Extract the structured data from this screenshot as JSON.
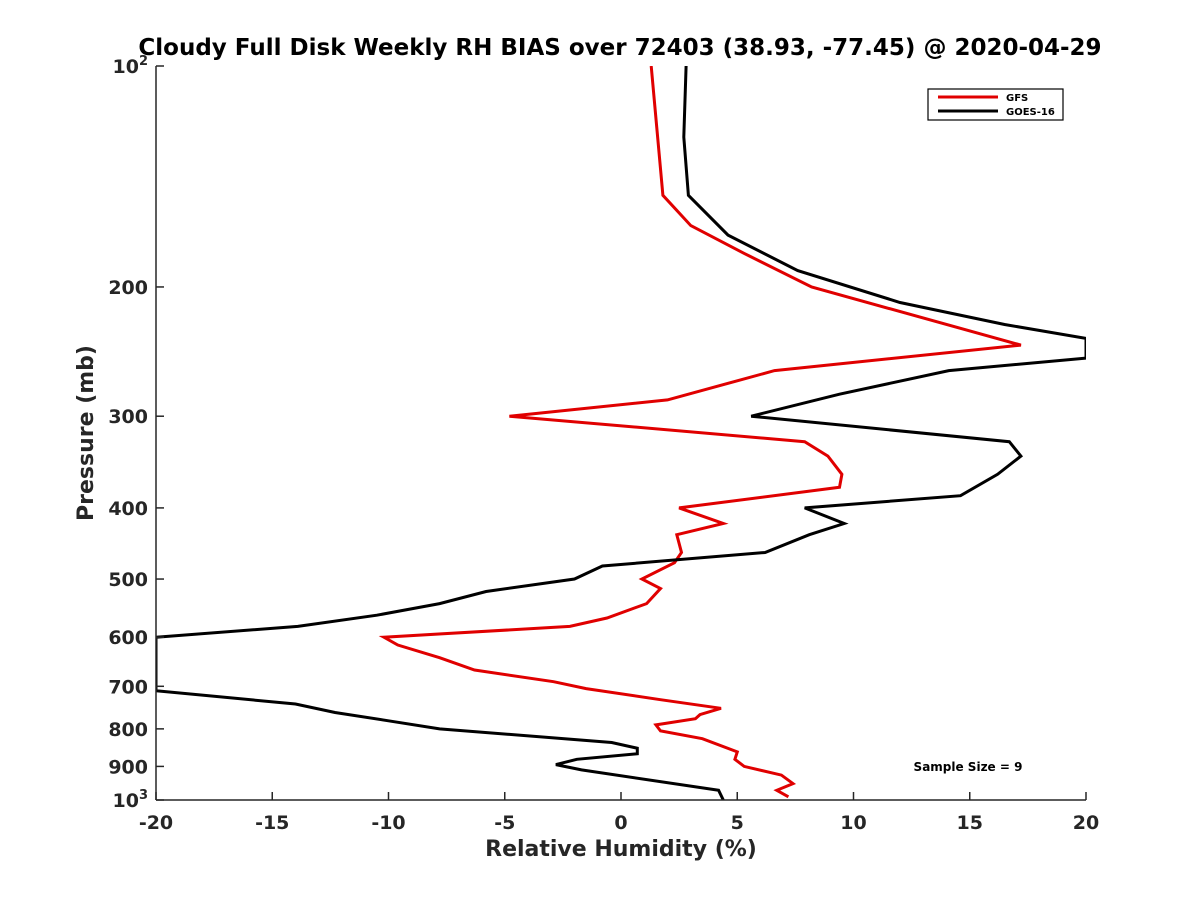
{
  "chart_data": {
    "type": "line",
    "title": "Cloudy Full Disk Weekly RH BIAS over 72403 (38.93, -77.45) @ 2020-04-29",
    "xlabel": "Relative Humidity (%)",
    "ylabel": "Pressure (mb)",
    "xlim": [
      -20,
      20
    ],
    "ylim": [
      100,
      1000
    ],
    "y_scale": "log",
    "y_reversed": true,
    "grid": false,
    "legend_position": "top-right",
    "x_tick_labels": [
      "-20",
      "-15",
      "-10",
      "-5",
      "0",
      "5",
      "10",
      "15",
      "20"
    ],
    "y_ticks": [
      {
        "value": 100,
        "base": "10",
        "exp": "2"
      },
      {
        "value": 200,
        "label": "200"
      },
      {
        "value": 300,
        "label": "300"
      },
      {
        "value": 400,
        "label": "400"
      },
      {
        "value": 500,
        "label": "500"
      },
      {
        "value": 600,
        "label": "600"
      },
      {
        "value": 700,
        "label": "700"
      },
      {
        "value": 800,
        "label": "800"
      },
      {
        "value": 900,
        "label": "900"
      },
      {
        "value": 1000,
        "base": "10",
        "exp": "3"
      }
    ],
    "annotation": "Sample Size = 9",
    "series": [
      {
        "name": "GFS",
        "color": "#e00000",
        "x": [
          1.3,
          1.8,
          3.0,
          5.3,
          8.2,
          17.2,
          6.6,
          2.0,
          -4.8,
          7.9,
          8.9,
          9.5,
          9.4,
          2.5,
          4.4,
          2.4,
          2.6,
          2.3,
          0.9,
          1.7,
          1.1,
          -0.6,
          -2.2,
          -10.2,
          -9.6,
          -7.8,
          -6.3,
          -2.9,
          -1.5,
          1.7,
          4.3,
          3.4,
          3.2,
          1.5,
          1.7,
          3.5,
          5.0,
          4.9,
          5.3,
          6.9,
          7.4,
          6.7,
          7.2
        ],
        "y": [
          100,
          150,
          165,
          180,
          200,
          240,
          260,
          285,
          300,
          325,
          340,
          360,
          375,
          400,
          420,
          435,
          460,
          475,
          500,
          515,
          540,
          565,
          580,
          600,
          615,
          640,
          665,
          690,
          705,
          730,
          750,
          765,
          775,
          790,
          805,
          825,
          860,
          880,
          900,
          925,
          950,
          970,
          990
        ]
      },
      {
        "name": "GOES-16",
        "color": "#000000",
        "x": [
          2.8,
          2.7,
          2.9,
          4.6,
          7.6,
          12.0,
          16.5,
          20.0,
          20.0,
          14.1,
          9.4,
          5.6,
          16.7,
          17.2,
          16.2,
          14.6,
          7.9,
          9.6,
          8.1,
          6.2,
          -0.8,
          -2.0,
          -5.8,
          -7.8,
          -10.5,
          -13.9,
          -20.0,
          -20.0,
          -14.0,
          -12.3,
          -10.0,
          -7.8,
          -0.4,
          0.7,
          0.7,
          -1.9,
          -2.8,
          -1.7,
          4.2,
          4.4
        ],
        "y": [
          100,
          125,
          150,
          170,
          190,
          210,
          225,
          235,
          250,
          260,
          280,
          300,
          325,
          340,
          360,
          385,
          400,
          420,
          435,
          460,
          480,
          500,
          520,
          540,
          560,
          580,
          600,
          710,
          740,
          760,
          780,
          800,
          835,
          850,
          865,
          880,
          895,
          910,
          970,
          1000
        ]
      }
    ]
  }
}
